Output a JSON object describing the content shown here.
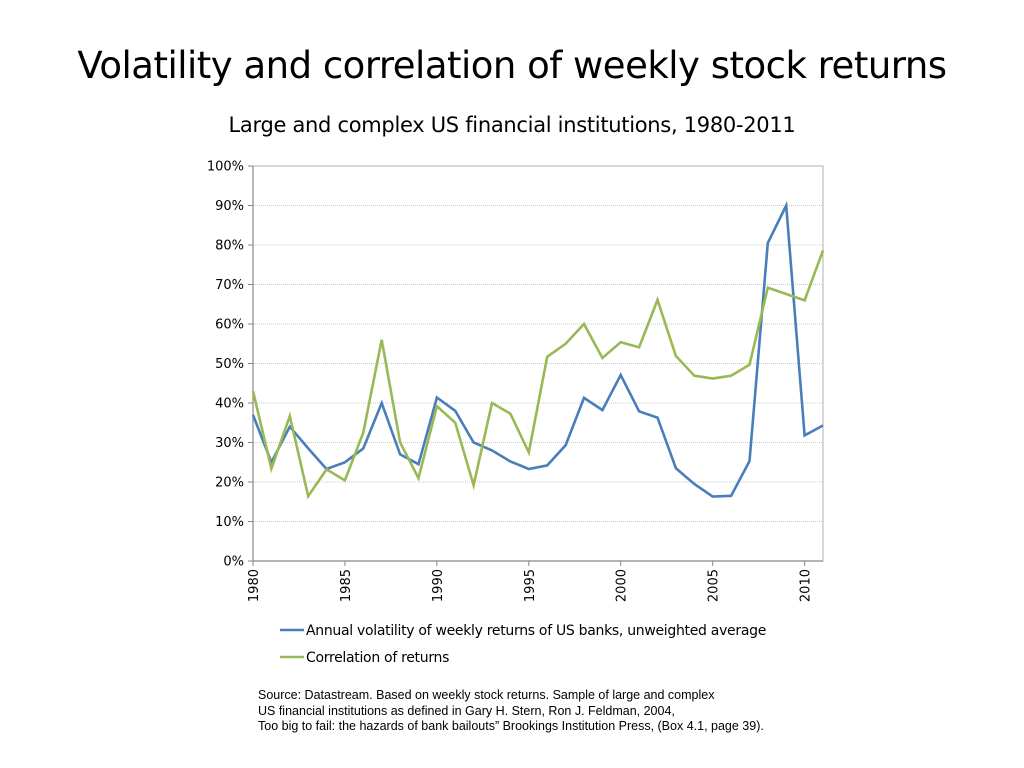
{
  "title": "Volatility and correlation of weekly stock returns",
  "subtitle": "Large and complex US financial institutions, 1980-2011",
  "source_lines": [
    "Source: Datastream. Based on weekly stock returns. Sample of large and complex",
    "US financial institutions as defined in Gary H. Stern, Ron J. Feldman, 2004,",
    "Too big to fail: the hazards of bank bailouts” Brookings Institution Press, (Box 4.1, page 39)."
  ],
  "chart_data": {
    "type": "line",
    "title": "Volatility and correlation of weekly stock returns",
    "subtitle": "Large and complex US financial institutions, 1980-2011",
    "xlabel": "",
    "ylabel": "",
    "x": [
      1980,
      1981,
      1982,
      1983,
      1984,
      1985,
      1986,
      1987,
      1988,
      1989,
      1990,
      1991,
      1992,
      1993,
      1994,
      1995,
      1996,
      1997,
      1998,
      1999,
      2000,
      2001,
      2002,
      2003,
      2004,
      2005,
      2006,
      2007,
      2008,
      2009,
      2010,
      2011
    ],
    "xlim": [
      1980,
      2011
    ],
    "x_ticks": [
      "1980",
      "1985",
      "1990",
      "1995",
      "2000",
      "2005",
      "2010"
    ],
    "x_tick_values": [
      1980,
      1985,
      1990,
      1995,
      2000,
      2005,
      2010
    ],
    "ylim": [
      0,
      100
    ],
    "y_ticks": [
      "0%",
      "10%",
      "20%",
      "30%",
      "40%",
      "50%",
      "60%",
      "70%",
      "80%",
      "90%",
      "100%"
    ],
    "y_tick_values": [
      0,
      10,
      20,
      30,
      40,
      50,
      60,
      70,
      80,
      90,
      100
    ],
    "grid": true,
    "legend_position": "bottom",
    "series": [
      {
        "name": "Annual volatility of weekly returns of US banks, unweighted average",
        "color": "#4a7ebb",
        "values": [
          37,
          25,
          34,
          28.5,
          23.3,
          25,
          28.5,
          40,
          27,
          24.5,
          41.4,
          38,
          30,
          28,
          25.2,
          23.3,
          24.2,
          29.3,
          41.3,
          38.2,
          47.1,
          37.9,
          36.3,
          23.5,
          19.5,
          16.3,
          16.5,
          25.3,
          80.5,
          90,
          31.8,
          34.3
        ]
      },
      {
        "name": "Correlation of returns",
        "color": "#98b954",
        "values": [
          43,
          23.4,
          36.7,
          16.4,
          23.2,
          20.4,
          32.5,
          56,
          30,
          21,
          39.2,
          35,
          19.2,
          40,
          37.3,
          27.5,
          51.7,
          55,
          60,
          51.4,
          55.4,
          54.1,
          66.1,
          51.9,
          46.9,
          46.2,
          46.9,
          49.7,
          69.2,
          67.6,
          66,
          78.6
        ]
      }
    ]
  }
}
